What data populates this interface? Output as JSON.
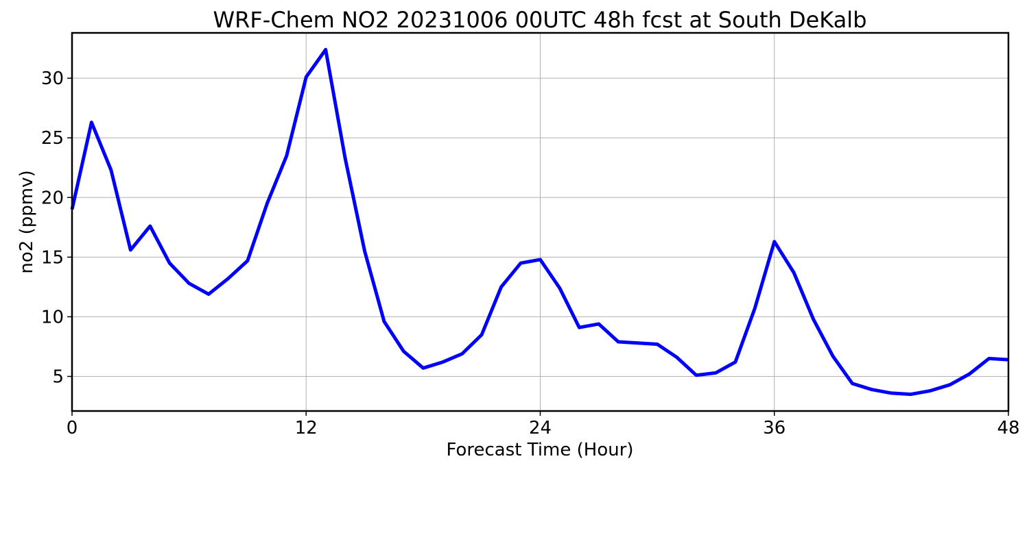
{
  "chart_data": {
    "type": "line",
    "title": "WRF-Chem NO2  20231006 00UTC 48h fcst at South DeKalb",
    "xlabel": "Forecast Time (Hour)",
    "ylabel": "no2  (ppmv)",
    "xlim": [
      0,
      48
    ],
    "ylim": [
      2.1,
      33.8
    ],
    "xticks": [
      0,
      12,
      24,
      36,
      48
    ],
    "yticks": [
      5,
      10,
      15,
      20,
      25,
      30
    ],
    "grid": true,
    "series": [
      {
        "color": "#0000ff",
        "x": [
          0,
          1,
          2,
          3,
          4,
          5,
          6,
          7,
          8,
          9,
          10,
          11,
          12,
          13,
          14,
          15,
          16,
          17,
          18,
          19,
          20,
          21,
          22,
          23,
          24,
          25,
          26,
          27,
          28,
          29,
          30,
          31,
          32,
          33,
          34,
          35,
          36,
          37,
          38,
          39,
          40,
          41,
          42,
          43,
          44,
          45,
          46,
          47,
          48
        ],
        "y": [
          19.0,
          26.3,
          22.3,
          15.6,
          17.6,
          14.5,
          12.8,
          11.9,
          13.2,
          14.7,
          19.5,
          23.5,
          30.1,
          32.4,
          23.3,
          15.5,
          9.6,
          7.1,
          5.7,
          6.2,
          6.9,
          8.5,
          12.5,
          14.5,
          14.8,
          12.4,
          9.1,
          9.4,
          7.9,
          7.8,
          7.7,
          6.6,
          5.1,
          5.3,
          6.2,
          10.7,
          16.3,
          13.7,
          9.8,
          6.7,
          4.4,
          3.9,
          3.6,
          3.5,
          3.8,
          4.3,
          5.2,
          6.5,
          6.4
        ]
      }
    ]
  }
}
